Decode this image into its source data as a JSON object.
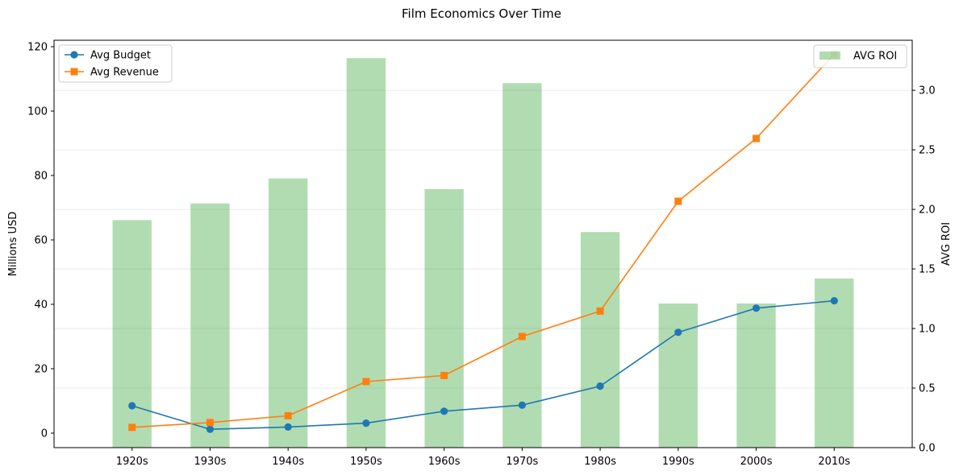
{
  "chart_data": {
    "type": "bar+line",
    "title": "Film Economics Over Time",
    "categories": [
      "1920s",
      "1930s",
      "1940s",
      "1950s",
      "1960s",
      "1970s",
      "1980s",
      "1990s",
      "2000s",
      "2010s"
    ],
    "left_axis": {
      "label": "Millions USD",
      "ylim": [
        -4.5,
        122
      ],
      "ticks": [
        0,
        20,
        40,
        60,
        80,
        100,
        120
      ]
    },
    "right_axis": {
      "label": "AVG ROI",
      "ylim": [
        0,
        3.42
      ],
      "ticks": [
        "0.0",
        "0.5",
        "1.0",
        "1.5",
        "2.0",
        "2.5",
        "3.0"
      ]
    },
    "series": [
      {
        "name": "Avg Budget",
        "kind": "line",
        "marker": "circle",
        "axis": "left",
        "color": "#1f77b4",
        "values": [
          8.5,
          1.2,
          1.9,
          3.1,
          6.8,
          8.7,
          14.6,
          31.3,
          38.8,
          41.1
        ]
      },
      {
        "name": "Avg Revenue",
        "kind": "line",
        "marker": "square",
        "axis": "left",
        "color": "#ff7f0e",
        "values": [
          1.8,
          3.3,
          5.4,
          16.0,
          17.9,
          30.0,
          37.9,
          72.0,
          91.5,
          117.7
        ]
      },
      {
        "name": "AVG ROI",
        "kind": "bar",
        "axis": "right",
        "color": "#2ca02c",
        "alpha": 0.37,
        "values": [
          1.91,
          2.05,
          2.26,
          3.27,
          2.17,
          3.06,
          1.81,
          1.21,
          1.21,
          1.42
        ]
      }
    ],
    "legend_left": {
      "position": "upper left",
      "entries": [
        "Avg Budget",
        "Avg Revenue"
      ]
    },
    "legend_right": {
      "position": "upper right",
      "entries": [
        "AVG ROI"
      ]
    },
    "grid": "horizontal, right axis"
  }
}
